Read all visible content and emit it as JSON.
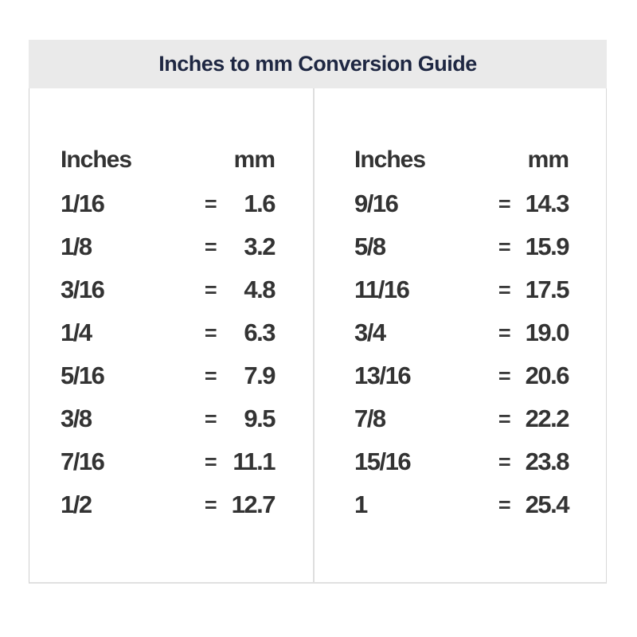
{
  "title": "Inches to mm Conversion Guide",
  "equals_sign": "=",
  "headers": {
    "inches": "Inches",
    "mm": "mm"
  },
  "colors": {
    "header_bg": "#eaeaea",
    "title_text": "#1e2742",
    "body_text": "#333333",
    "divider": "#dedede",
    "border": "#cfcfcf",
    "background": "#ffffff"
  },
  "conversions": {
    "left": {
      "rows": [
        {
          "inches": "1/16",
          "mm": "1.6"
        },
        {
          "inches": "1/8",
          "mm": "3.2"
        },
        {
          "inches": "3/16",
          "mm": "4.8"
        },
        {
          "inches": "1/4",
          "mm": "6.3"
        },
        {
          "inches": "5/16",
          "mm": "7.9"
        },
        {
          "inches": "3/8",
          "mm": "9.5"
        },
        {
          "inches": "7/16",
          "mm": "11.1"
        },
        {
          "inches": "1/2",
          "mm": "12.7"
        }
      ]
    },
    "right": {
      "rows": [
        {
          "inches": "9/16",
          "mm": "14.3"
        },
        {
          "inches": "5/8",
          "mm": "15.9"
        },
        {
          "inches": "11/16",
          "mm": "17.5"
        },
        {
          "inches": "3/4",
          "mm": "19.0"
        },
        {
          "inches": "13/16",
          "mm": "20.6"
        },
        {
          "inches": "7/8",
          "mm": "22.2"
        },
        {
          "inches": "15/16",
          "mm": "23.8"
        },
        {
          "inches": "1",
          "mm": "25.4"
        }
      ]
    }
  },
  "chart_data": {
    "type": "table",
    "title": "Inches to mm Conversion Guide",
    "columns": [
      "Inches",
      "mm"
    ],
    "rows": [
      [
        "1/16",
        "1.6"
      ],
      [
        "1/8",
        "3.2"
      ],
      [
        "3/16",
        "4.8"
      ],
      [
        "1/4",
        "6.3"
      ],
      [
        "5/16",
        "7.9"
      ],
      [
        "3/8",
        "9.5"
      ],
      [
        "7/16",
        "11.1"
      ],
      [
        "1/2",
        "12.7"
      ],
      [
        "9/16",
        "14.3"
      ],
      [
        "5/8",
        "15.9"
      ],
      [
        "11/16",
        "17.5"
      ],
      [
        "3/4",
        "19.0"
      ],
      [
        "13/16",
        "20.6"
      ],
      [
        "7/8",
        "22.2"
      ],
      [
        "15/16",
        "23.8"
      ],
      [
        "1",
        "25.4"
      ]
    ],
    "layout": "two side-by-side panels of 8 rows each, separated by a vertical rule"
  }
}
